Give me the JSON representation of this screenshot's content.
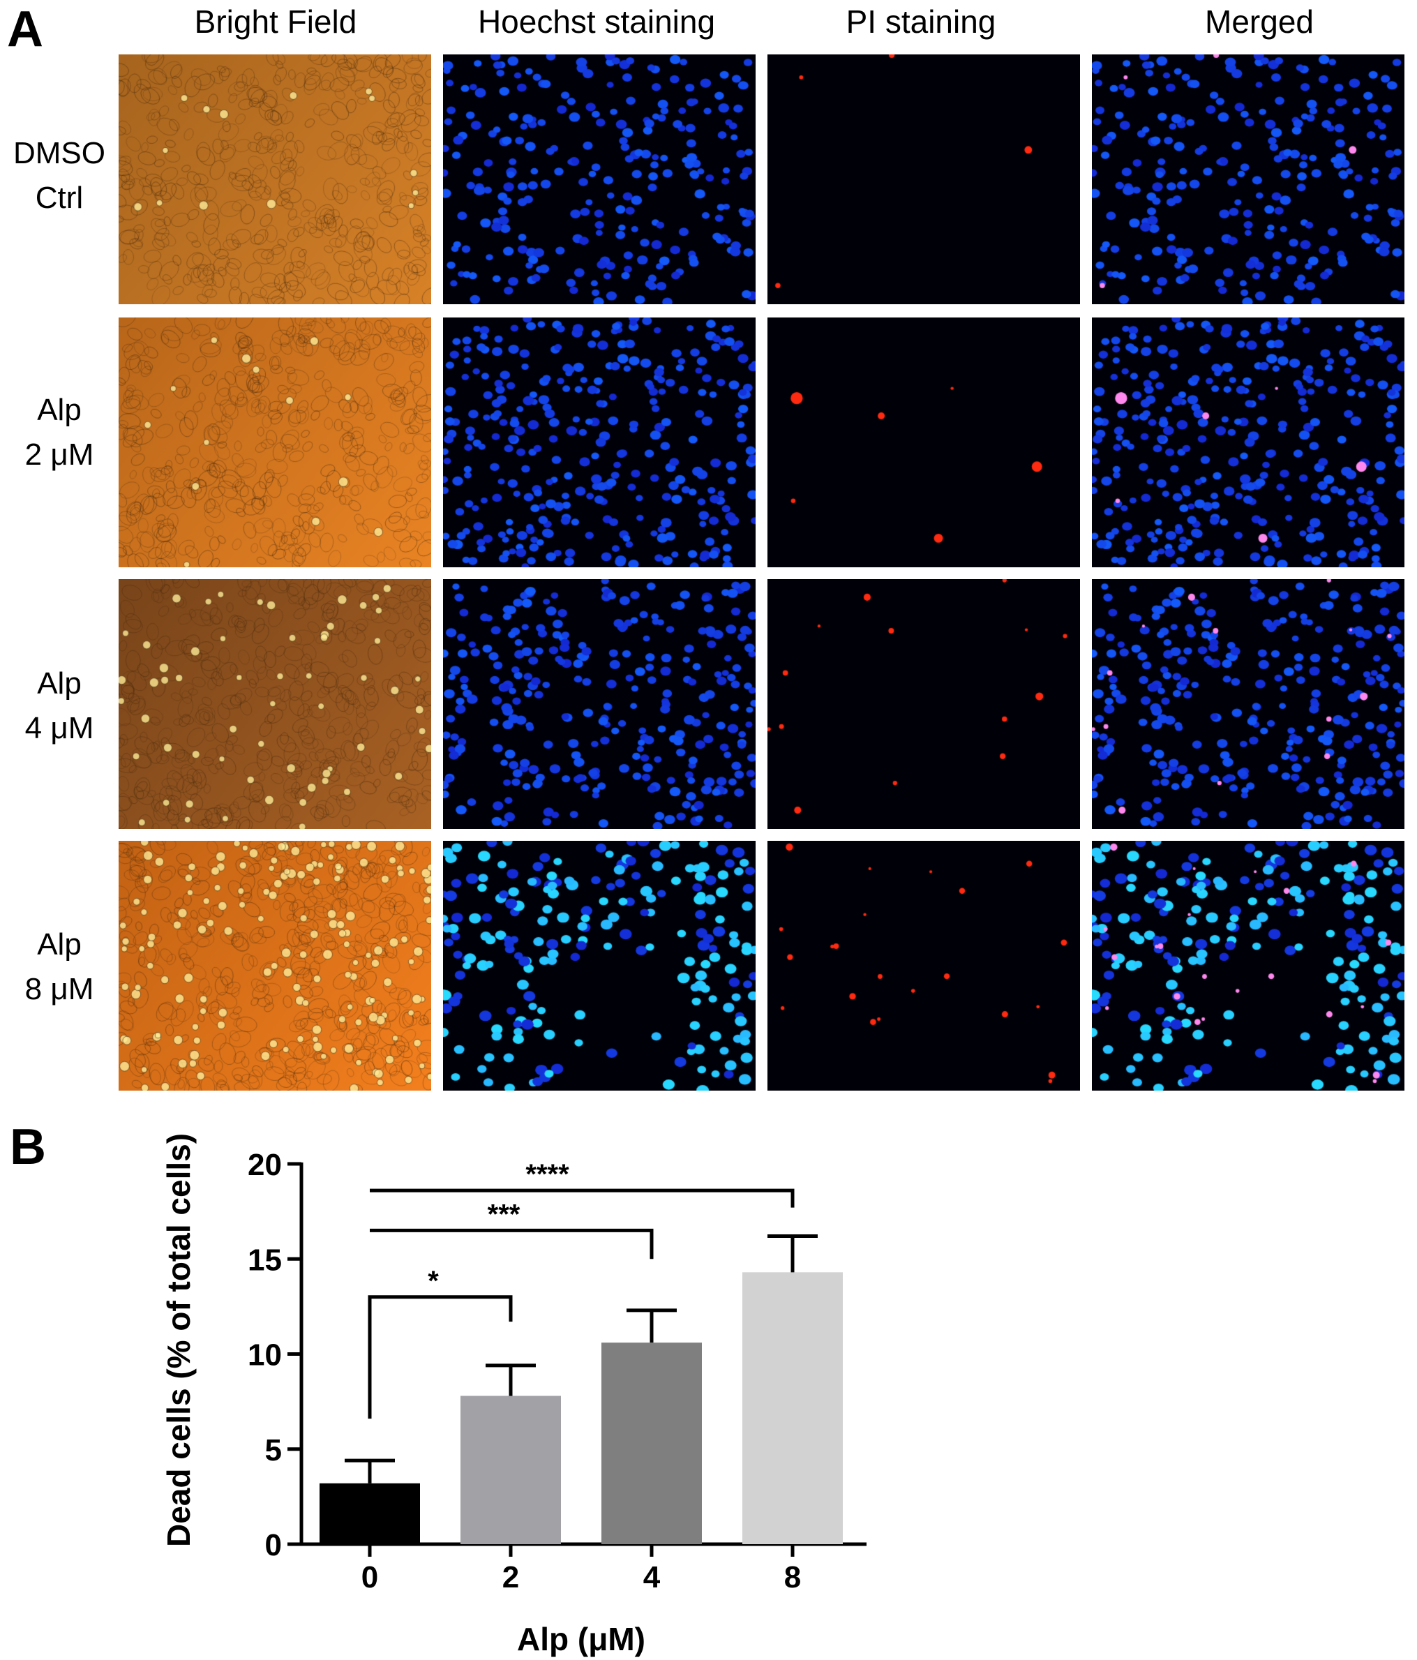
{
  "panel_a": {
    "letter": "A",
    "columns": [
      "Bright Field",
      "Hoechst staining",
      "PI staining",
      "Merged"
    ],
    "rows": [
      {
        "line1": "DMSO",
        "line2": "Ctrl"
      },
      {
        "line1": "Alp",
        "line2": "2 μM"
      },
      {
        "line1": "Alp",
        "line2": "4 μM"
      },
      {
        "line1": "Alp",
        "line2": "8 μM"
      }
    ]
  },
  "panel_b": {
    "letter": "B"
  },
  "colors": {
    "bright_field": "#c87a24",
    "hoechst": "#1f3fff",
    "pi": "#ff2a10",
    "merged_background": "#000010"
  },
  "chart_data": {
    "type": "bar",
    "categories": [
      "0",
      "2",
      "4",
      "8"
    ],
    "values": [
      3.2,
      7.8,
      10.6,
      14.3
    ],
    "errors": [
      1.2,
      1.6,
      1.7,
      1.9
    ],
    "bar_colors": [
      "#000000",
      "#a2a2a6",
      "#7f7f7f",
      "#d2d2d2"
    ],
    "title": "",
    "xlabel": "Alp (μM)",
    "ylabel": "Dead cells (% of total cells)",
    "ylim": [
      0,
      20
    ],
    "yticks": [
      0,
      5,
      10,
      15,
      20
    ],
    "grid": false,
    "significance": [
      {
        "from": "0",
        "to": "2",
        "label": "*"
      },
      {
        "from": "0",
        "to": "4",
        "label": "***"
      },
      {
        "from": "0",
        "to": "8",
        "label": "****"
      }
    ]
  }
}
